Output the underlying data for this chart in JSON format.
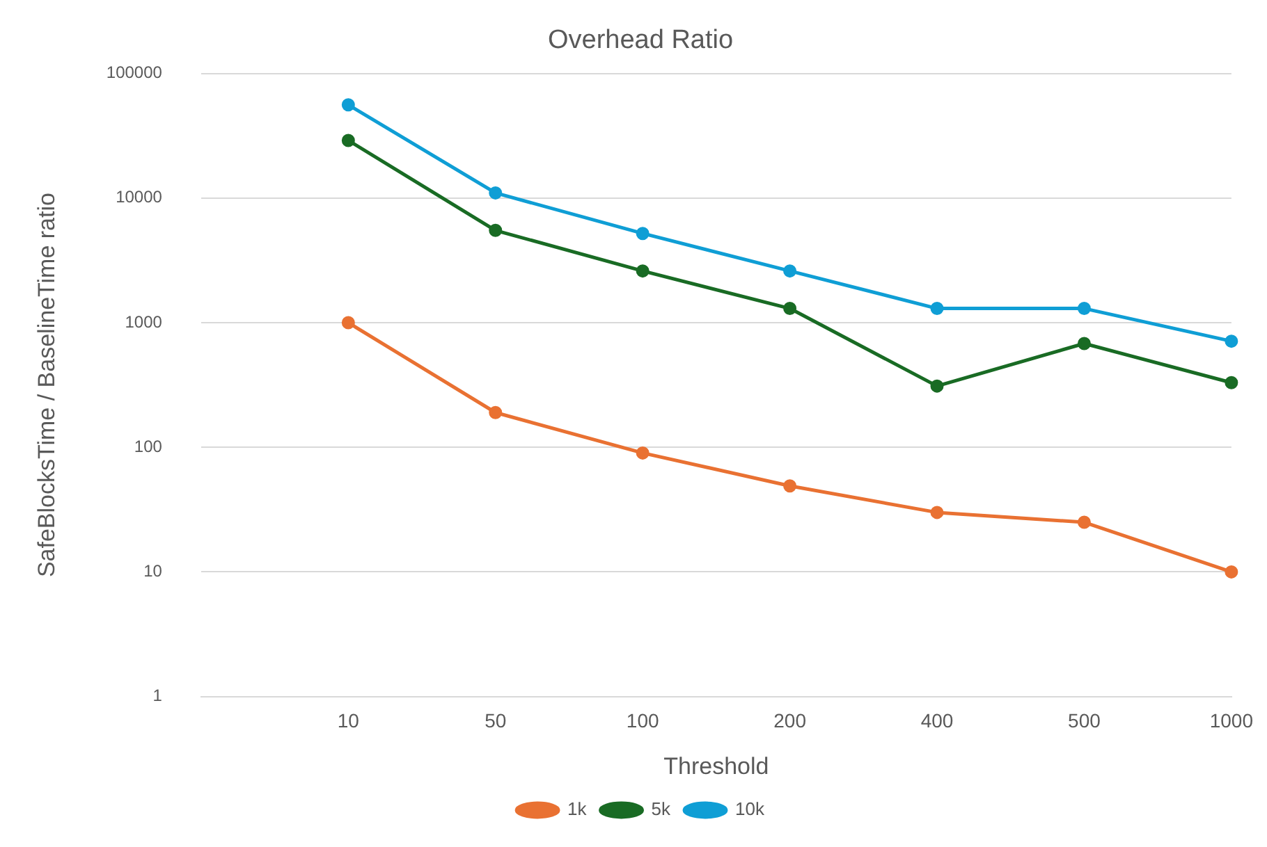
{
  "chart_data": {
    "type": "line",
    "title": "Overhead Ratio",
    "xlabel": "Threshold",
    "ylabel": "SafeBlocksTime / BaselineTime ratio",
    "categories": [
      null,
      "10",
      "50",
      "100",
      "200",
      "400",
      "500",
      "1000"
    ],
    "series": [
      {
        "name": "1k",
        "color": "#e97132",
        "values": [
          null,
          1000,
          190,
          90,
          49,
          30,
          25,
          10
        ]
      },
      {
        "name": "5k",
        "color": "#196b24",
        "values": [
          null,
          29000,
          5500,
          2600,
          1300,
          310,
          680,
          330
        ]
      },
      {
        "name": "10k",
        "color": "#0f9ed5",
        "values": [
          null,
          56000,
          11000,
          5200,
          2600,
          1300,
          1300,
          710
        ]
      }
    ],
    "log": "y",
    "ylim": [
      1,
      100000
    ],
    "yticks": [
      1,
      10,
      100,
      1000,
      10000,
      100000
    ],
    "grid": "y",
    "legend": "bottom",
    "marker": "circle",
    "line_style": "solid"
  }
}
